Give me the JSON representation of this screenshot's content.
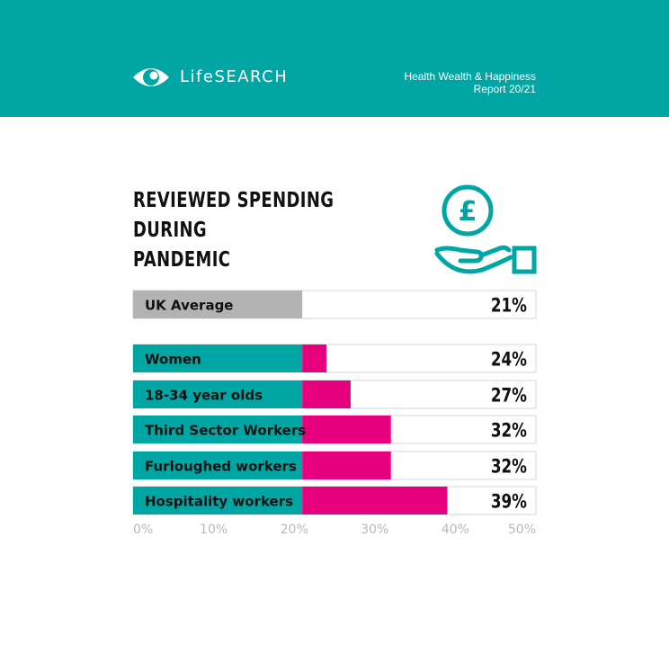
{
  "header": {
    "brand": "LifeSEARCH",
    "report_line1": "Health Wealth & Happiness",
    "report_line2": "Report 20/21",
    "logo_icon": "eye-logo-icon"
  },
  "icon": "pound-coin-hand-icon",
  "colors": {
    "header_bg": "#00a6a3",
    "teal": "#00a6a3",
    "magenta": "#e6007e",
    "grey": "#b3b3b3"
  },
  "chart_data": {
    "type": "bar",
    "orientation": "horizontal",
    "title_lines": [
      "REVIEWED SPENDING DURING",
      "PANDEMIC"
    ],
    "categories": [
      "UK Average",
      "Women",
      "18-34 year olds",
      "Third Sector Workers",
      "Furloughed workers",
      "Hospitality workers"
    ],
    "values": [
      21,
      24,
      27,
      32,
      32,
      39
    ],
    "value_labels": [
      "21%",
      "24%",
      "27%",
      "32%",
      "32%",
      "39%"
    ],
    "baseline": 21,
    "xlim": [
      0,
      50
    ],
    "ticks": [
      "0%",
      "10%",
      "20%",
      "30%",
      "40%",
      "50%"
    ],
    "tick_values": [
      0,
      10,
      20,
      30,
      40,
      50
    ],
    "grid": false
  }
}
